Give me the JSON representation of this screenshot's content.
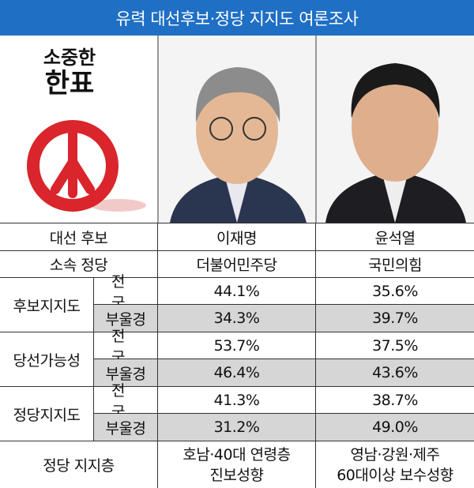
{
  "header": {
    "title": "유력 대선후보·정당 지지도 여론조사"
  },
  "logo": {
    "line1": "소중한",
    "line2": "한표"
  },
  "table": {
    "candidate_label": "대선 후보",
    "candidates": [
      "이재명",
      "윤석열"
    ],
    "party_label": "소속 정당",
    "parties": [
      "더불어민주당",
      "국민의힘"
    ],
    "groups": [
      {
        "label": "후보지지도",
        "rows": [
          {
            "region": "전 국",
            "values": [
              "44.1%",
              "35.6%"
            ]
          },
          {
            "region": "부울경",
            "values": [
              "34.3%",
              "39.7%"
            ]
          }
        ]
      },
      {
        "label": "당선가능성",
        "rows": [
          {
            "region": "전 국",
            "values": [
              "53.7%",
              "37.5%"
            ]
          },
          {
            "region": "부울경",
            "values": [
              "46.4%",
              "43.6%"
            ]
          }
        ]
      },
      {
        "label": "정당지지도",
        "rows": [
          {
            "region": "전 국",
            "values": [
              "41.3%",
              "38.7%"
            ]
          },
          {
            "region": "부울경",
            "values": [
              "31.2%",
              "49.0%"
            ]
          }
        ]
      }
    ],
    "support_label": "정당 지지층",
    "support": [
      [
        "호남·40대 연령층",
        "진보성향"
      ],
      [
        "영남·강원·제주",
        "60대이상 보수성향"
      ]
    ]
  }
}
